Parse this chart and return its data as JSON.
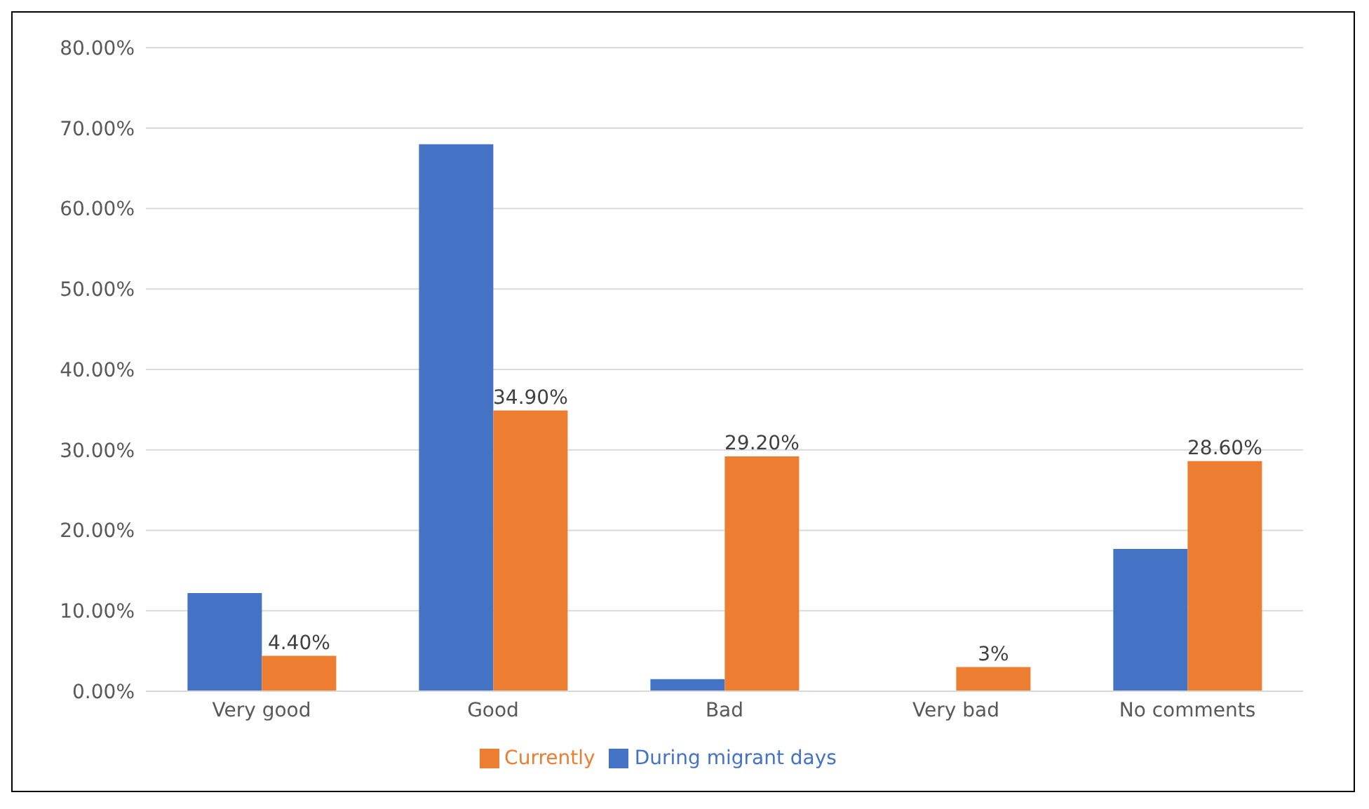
{
  "chart_data": {
    "type": "bar",
    "categories": [
      "Very good",
      "Good",
      "Bad",
      "Very bad",
      "No comments"
    ],
    "series": [
      {
        "name": "During migrant days",
        "color": "#4472c4",
        "values": [
          12.2,
          68.0,
          1.5,
          0,
          17.7
        ]
      },
      {
        "name": "Currently",
        "color": "#ed7d31",
        "values": [
          4.4,
          34.9,
          29.2,
          3,
          28.6
        ],
        "value_labels": [
          "4.40%",
          "34.90%",
          "29.20%",
          "3%",
          "28.60%"
        ]
      }
    ],
    "ylim": [
      0,
      80
    ],
    "yticks": [
      {
        "value": 0,
        "label": "0.00%"
      },
      {
        "value": 10,
        "label": "10.00%"
      },
      {
        "value": 20,
        "label": "20.00%"
      },
      {
        "value": 30,
        "label": "30.00%"
      },
      {
        "value": 40,
        "label": "40.00%"
      },
      {
        "value": 50,
        "label": "50.00%"
      },
      {
        "value": 60,
        "label": "60.00%"
      },
      {
        "value": 70,
        "label": "70.00%"
      },
      {
        "value": 80,
        "label": "80.00%"
      }
    ],
    "grid": "y",
    "legend": "bottom"
  }
}
